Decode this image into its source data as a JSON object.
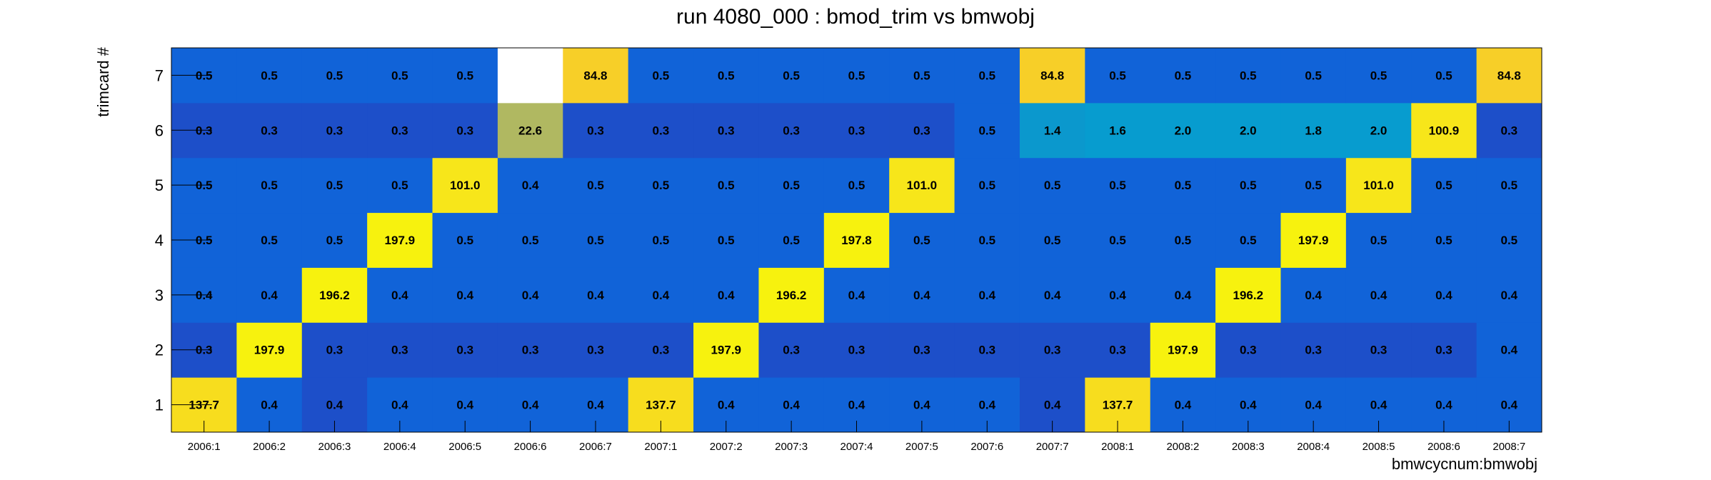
{
  "chart_data": {
    "type": "heatmap",
    "title": "run 4080_000 : bmod_trim vs bmwobj",
    "xlabel": "bmwcycnum:bmwobj",
    "ylabel": "trimcard #",
    "x_categories": [
      "2006:1",
      "2006:2",
      "2006:3",
      "2006:4",
      "2006:5",
      "2006:6",
      "2006:7",
      "2007:1",
      "2007:2",
      "2007:3",
      "2007:4",
      "2007:5",
      "2007:6",
      "2007:7",
      "2008:1",
      "2008:2",
      "2008:3",
      "2008:4",
      "2008:5",
      "2008:6",
      "2008:7"
    ],
    "y_categories": [
      "1",
      "2",
      "3",
      "4",
      "5",
      "6",
      "7"
    ],
    "values": [
      [
        137.7,
        0.4,
        0.4,
        0.4,
        0.4,
        0.4,
        0.4,
        137.7,
        0.4,
        0.4,
        0.4,
        0.4,
        0.4,
        0.4,
        137.7,
        0.4,
        0.4,
        0.4,
        0.4,
        0.4,
        0.4
      ],
      [
        0.3,
        197.9,
        0.3,
        0.3,
        0.3,
        0.3,
        0.3,
        0.3,
        197.9,
        0.3,
        0.3,
        0.3,
        0.3,
        0.3,
        0.3,
        197.9,
        0.3,
        0.3,
        0.3,
        0.3,
        0.4
      ],
      [
        0.4,
        0.4,
        196.2,
        0.4,
        0.4,
        0.4,
        0.4,
        0.4,
        0.4,
        196.2,
        0.4,
        0.4,
        0.4,
        0.4,
        0.4,
        0.4,
        196.2,
        0.4,
        0.4,
        0.4,
        0.4
      ],
      [
        0.5,
        0.5,
        0.5,
        197.9,
        0.5,
        0.5,
        0.5,
        0.5,
        0.5,
        0.5,
        197.8,
        0.5,
        0.5,
        0.5,
        0.5,
        0.5,
        0.5,
        197.9,
        0.5,
        0.5,
        0.5
      ],
      [
        0.5,
        0.5,
        0.5,
        0.5,
        101.0,
        0.4,
        0.5,
        0.5,
        0.5,
        0.5,
        0.5,
        101.0,
        0.5,
        0.5,
        0.5,
        0.5,
        0.5,
        0.5,
        101.0,
        0.5,
        0.5
      ],
      [
        0.3,
        0.3,
        0.3,
        0.3,
        0.3,
        22.6,
        0.3,
        0.3,
        0.3,
        0.3,
        0.3,
        0.3,
        0.5,
        1.4,
        1.6,
        2.0,
        2.0,
        1.8,
        2.0,
        100.9,
        0.3
      ],
      [
        0.5,
        0.5,
        0.5,
        0.5,
        0.5,
        null,
        84.8,
        0.5,
        0.5,
        0.5,
        0.5,
        0.5,
        0.5,
        84.8,
        0.5,
        0.5,
        0.5,
        0.5,
        0.5,
        0.5,
        84.8
      ]
    ],
    "cell_colors": [
      [
        "#f7dd1e",
        "#1163d8",
        "#1d4fc9",
        "#1163d8",
        "#1163d8",
        "#1163d8",
        "#1163d8",
        "#f7dd1e",
        "#1163d8",
        "#1163d8",
        "#1163d8",
        "#1163d8",
        "#1163d8",
        "#1d4fc9",
        "#f7dd1e",
        "#1163d8",
        "#1163d8",
        "#1163d8",
        "#1163d8",
        "#1163d8",
        "#1163d8"
      ],
      [
        "#1d4fc9",
        "#f7f20e",
        "#1d4fc9",
        "#1d4fc9",
        "#1d4fc9",
        "#1d4fc9",
        "#1d4fc9",
        "#1d4fc9",
        "#f7f20e",
        "#1d4fc9",
        "#1d4fc9",
        "#1d4fc9",
        "#1d4fc9",
        "#1d4fc9",
        "#1d4fc9",
        "#f7f20e",
        "#1d4fc9",
        "#1d4fc9",
        "#1d4fc9",
        "#1d4fc9",
        "#1163d8"
      ],
      [
        "#1163d8",
        "#1163d8",
        "#f7f20e",
        "#1163d8",
        "#1163d8",
        "#1163d8",
        "#1163d8",
        "#1163d8",
        "#1163d8",
        "#f7f20e",
        "#1163d8",
        "#1163d8",
        "#1163d8",
        "#1163d8",
        "#1163d8",
        "#1163d8",
        "#f7f20e",
        "#1163d8",
        "#1163d8",
        "#1163d8",
        "#1163d8"
      ],
      [
        "#1163d8",
        "#1163d8",
        "#1163d8",
        "#f7f20e",
        "#1163d8",
        "#1163d8",
        "#1163d8",
        "#1163d8",
        "#1163d8",
        "#1163d8",
        "#f7f20e",
        "#1163d8",
        "#1163d8",
        "#1163d8",
        "#1163d8",
        "#1163d8",
        "#1163d8",
        "#f7f20e",
        "#1163d8",
        "#1163d8",
        "#1163d8"
      ],
      [
        "#1163d8",
        "#1163d8",
        "#1163d8",
        "#1163d8",
        "#f7e61a",
        "#1163d8",
        "#1163d8",
        "#1163d8",
        "#1163d8",
        "#1163d8",
        "#1163d8",
        "#f7e61a",
        "#1163d8",
        "#1163d8",
        "#1163d8",
        "#1163d8",
        "#1163d8",
        "#1163d8",
        "#f7e61a",
        "#1163d8",
        "#1163d8"
      ],
      [
        "#1d4fc9",
        "#1d4fc9",
        "#1d4fc9",
        "#1d4fc9",
        "#1d4fc9",
        "#b0b861",
        "#1d4fc9",
        "#1d4fc9",
        "#1d4fc9",
        "#1d4fc9",
        "#1d4fc9",
        "#1d4fc9",
        "#1163d8",
        "#0b98cd",
        "#079ccf",
        "#079ccf",
        "#079ccf",
        "#079ccf",
        "#079ccf",
        "#f7e61a",
        "#1d4fc9"
      ],
      [
        "#1163d8",
        "#1163d8",
        "#1163d8",
        "#1163d8",
        "#1163d8",
        "#ffffff",
        "#f7cf28",
        "#1163d8",
        "#1163d8",
        "#1163d8",
        "#1163d8",
        "#1163d8",
        "#1163d8",
        "#f7cf28",
        "#1163d8",
        "#1163d8",
        "#1163d8",
        "#1163d8",
        "#1163d8",
        "#1163d8",
        "#f7cf28"
      ]
    ]
  }
}
